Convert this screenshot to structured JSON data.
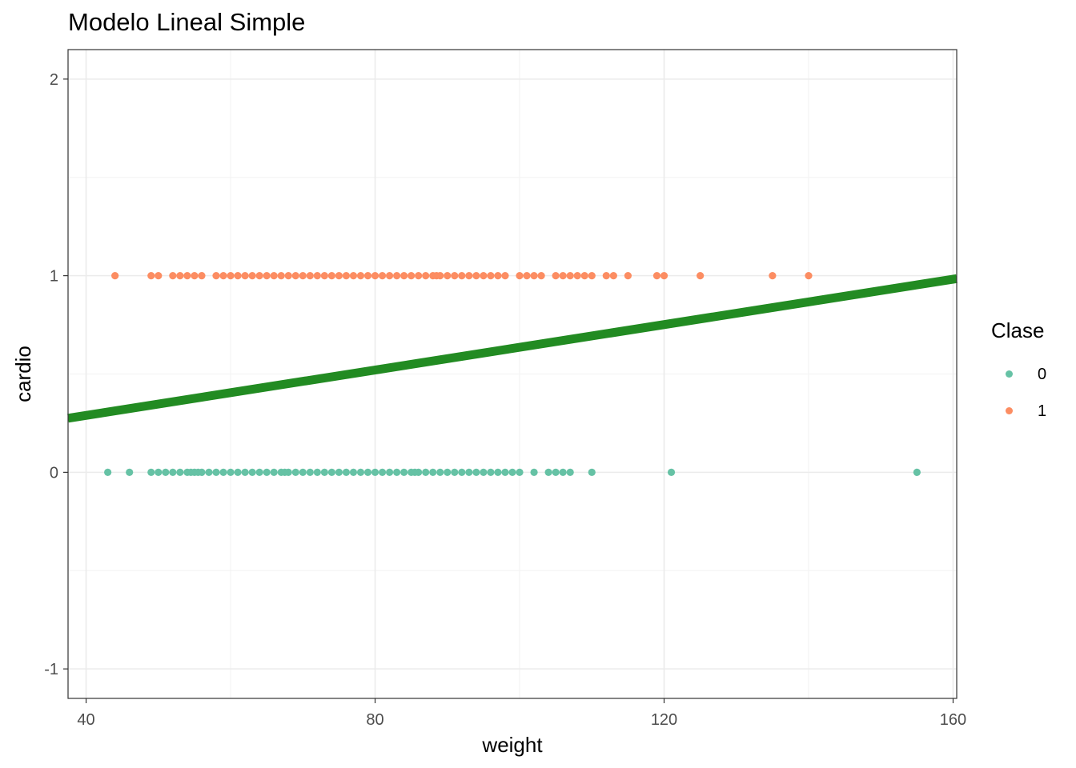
{
  "chart_data": {
    "type": "scatter",
    "title": "Modelo Lineal Simple",
    "xlabel": "weight",
    "ylabel": "cardio",
    "xlim": [
      37.5,
      160.5
    ],
    "ylim": [
      -1.15,
      2.15
    ],
    "x_ticks": [
      40,
      80,
      120,
      160
    ],
    "y_ticks": [
      -1,
      0,
      1,
      2
    ],
    "x_tick_labels": [
      "40",
      "80",
      "120",
      "160"
    ],
    "y_tick_labels": [
      "-1",
      "0",
      "1",
      "2"
    ],
    "grid": true,
    "legend": {
      "title": "Clase",
      "placement": "right",
      "entries": [
        "0",
        "1"
      ]
    },
    "series": [
      {
        "name": "0",
        "color": "#66C2A5",
        "y": 0,
        "x": [
          43,
          46,
          49,
          50,
          51,
          52,
          53,
          54,
          54.5,
          55,
          55.5,
          56,
          57,
          58,
          59,
          60,
          61,
          62,
          63,
          64,
          65,
          66,
          67,
          67.5,
          68,
          69,
          70,
          71,
          72,
          73,
          74,
          75,
          76,
          77,
          78,
          79,
          80,
          81,
          82,
          83,
          84,
          85,
          85.5,
          86,
          87,
          88,
          89,
          90,
          91,
          92,
          93,
          94,
          95,
          96,
          97,
          98,
          99,
          100,
          102,
          104,
          105,
          106,
          107,
          110,
          121,
          155
        ]
      },
      {
        "name": "1",
        "color": "#FC8D62",
        "y": 1,
        "x": [
          44,
          49,
          50,
          52,
          53,
          54,
          55,
          56,
          58,
          59,
          60,
          61,
          62,
          63,
          64,
          65,
          66,
          67,
          68,
          69,
          70,
          71,
          72,
          73,
          74,
          75,
          76,
          77,
          78,
          79,
          80,
          81,
          82,
          83,
          84,
          85,
          86,
          87,
          88,
          88.5,
          89,
          90,
          91,
          92,
          93,
          94,
          95,
          96,
          97,
          98,
          100,
          101,
          102,
          103,
          105,
          106,
          107,
          108,
          109,
          110,
          112,
          113,
          115,
          119,
          120,
          125,
          135,
          140
        ]
      }
    ],
    "fit_line": {
      "color": "#228B22",
      "x": [
        37.5,
        160.5
      ],
      "y": [
        0.275,
        0.985
      ]
    }
  }
}
